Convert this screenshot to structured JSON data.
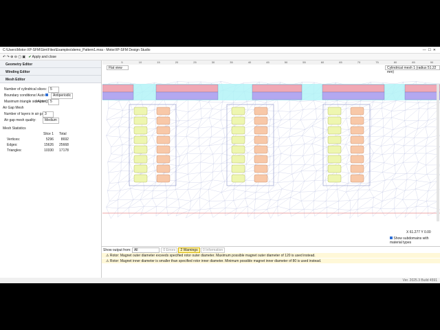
{
  "window": {
    "title": "C:\\Users\\Motor-XP-SFM\\Sim\\Files\\Examples\\demo_Pattern1.mxa - MotorXP-SFM Design Studio"
  },
  "toolbar": {
    "apply": "Apply and close"
  },
  "sidebar": {
    "sections": [
      "Geometry Editor",
      "Winding Editor",
      "Mesh Editor"
    ],
    "fields": [
      {
        "label": "Number of cylindrical slices:",
        "value": "5"
      },
      {
        "label": "Boundary conditions:",
        "auto": "Auto",
        "value": "Antiperiodic"
      },
      {
        "label": "Maximum triangle side (mm):",
        "auto": "Auto",
        "value": "5"
      }
    ],
    "airgap_title": "Air Gap Mesh",
    "airgap_fields": [
      {
        "label": "Number of layers in air gap:",
        "value": "3"
      },
      {
        "label": "Air gap mesh quality:",
        "value": "Medium"
      }
    ],
    "stats_title": "Mesh Statistics",
    "stats_header": [
      "Slice 1",
      "Total"
    ],
    "stats_rows": [
      [
        "Vertices:",
        "5296",
        "8692"
      ],
      [
        "Edges:",
        "15626",
        "25668"
      ],
      [
        "Triangles:",
        "10330",
        "17178"
      ]
    ]
  },
  "view": {
    "mode": "Flat view",
    "mesh": "Cylindrical mesh 1 (radius 51.22 mm)",
    "ruler": [
      5,
      10,
      15,
      20,
      25,
      30,
      35,
      40,
      45,
      50,
      55,
      60,
      65,
      70,
      75,
      80,
      85,
      90
    ],
    "coords": "X 61.277   Y 0.00",
    "subdomains": "Show subdomains with material types"
  },
  "output": {
    "label": "Show output from:",
    "filter": "All",
    "tabs": [
      "0 Errors",
      "2 Warnings",
      "0 Information"
    ],
    "messages": [
      "Rotor: Magnet outer diameter exceeds specified rotor outer diameter. Maximum possible magnet outer diameter of 120 is used instead.",
      "Rotor: Magnet inner diameter is smaller than specified rotor inner diameter. Minimum possible magnet inner diameter of 80 is used instead."
    ]
  },
  "status": "Ver. 2025.3 Build 4591"
}
